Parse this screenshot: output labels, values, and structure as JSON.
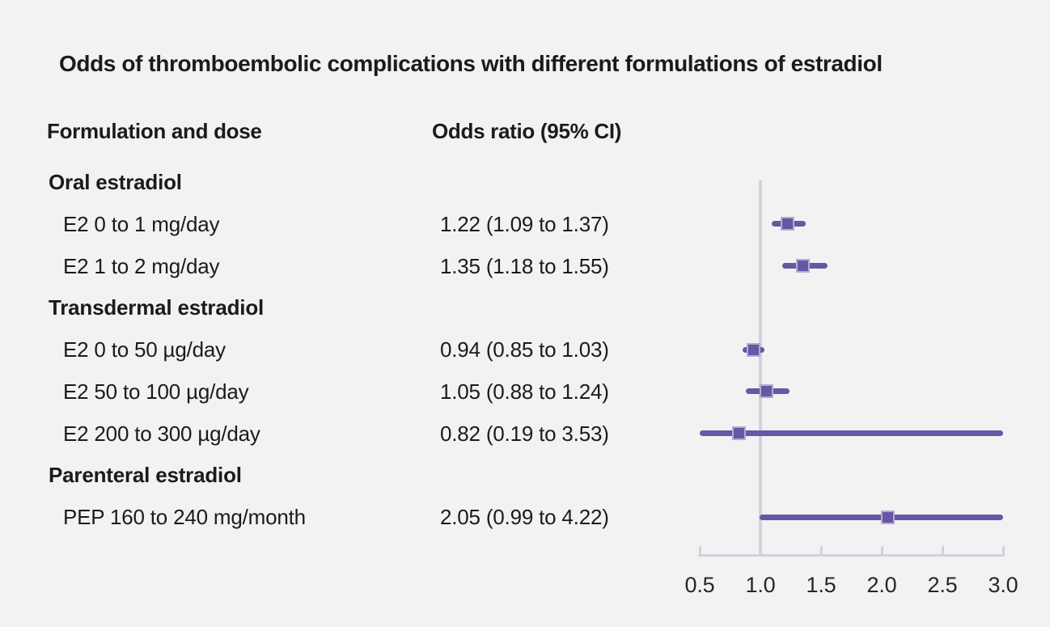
{
  "title": "Odds of thromboembolic complications with different formulations of estradiol",
  "columns": {
    "formulation": "Formulation and dose",
    "odds_ratio": "Odds ratio (95% CI)"
  },
  "chart_data": {
    "type": "forest-plot",
    "xlim": [
      0.5,
      3.0
    ],
    "reference_line": 1.0,
    "x_ticks": [
      {
        "value": 0.5,
        "label": "0.5"
      },
      {
        "value": 1.0,
        "label": "1.0"
      },
      {
        "value": 1.5,
        "label": "1.5"
      },
      {
        "value": 2.0,
        "label": "2.0"
      },
      {
        "value": 2.5,
        "label": "2.5"
      },
      {
        "value": 3.0,
        "label": "3.0"
      }
    ],
    "grid": false,
    "legend": false,
    "rows": [
      {
        "kind": "group",
        "label": "Oral estradiol"
      },
      {
        "kind": "item",
        "label": "E2 0 to 1 mg/day",
        "or_text": "1.22 (1.09 to 1.37)",
        "estimate": 1.22,
        "ci_low": 1.09,
        "ci_high": 1.37
      },
      {
        "kind": "item",
        "label": "E2 1 to 2 mg/day",
        "or_text": "1.35 (1.18 to 1.55)",
        "estimate": 1.35,
        "ci_low": 1.18,
        "ci_high": 1.55
      },
      {
        "kind": "group",
        "label": "Transdermal estradiol"
      },
      {
        "kind": "item",
        "label": "E2 0 to 50 µg/day",
        "or_text": "0.94 (0.85 to 1.03)",
        "estimate": 0.94,
        "ci_low": 0.85,
        "ci_high": 1.03
      },
      {
        "kind": "item",
        "label": "E2 50 to 100 µg/day",
        "or_text": "1.05 (0.88 to 1.24)",
        "estimate": 1.05,
        "ci_low": 0.88,
        "ci_high": 1.24
      },
      {
        "kind": "item",
        "label": "E2 200 to 300 µg/day",
        "or_text": "0.82 (0.19 to 3.53)",
        "estimate": 0.82,
        "ci_low": 0.19,
        "ci_high": 3.53
      },
      {
        "kind": "group",
        "label": "Parenteral estradiol"
      },
      {
        "kind": "item",
        "label": "PEP 160 to 240 mg/month",
        "or_text": "2.05 (0.99 to 4.22)",
        "estimate": 2.05,
        "ci_low": 0.99,
        "ci_high": 4.22
      }
    ],
    "colors": {
      "marker": "#6757a4",
      "ci_line": "#6757a4",
      "axis": "#ced3de",
      "background": "#f2f2f3",
      "text": "#1b1b1b"
    }
  }
}
